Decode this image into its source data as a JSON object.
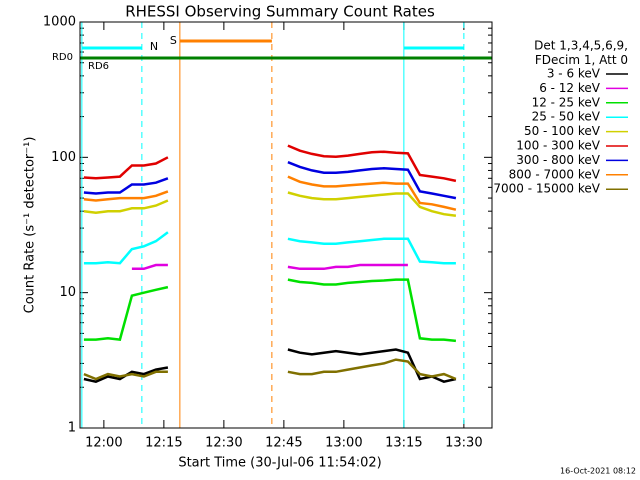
{
  "chart_data": {
    "type": "line",
    "title": "RHESSI Observing Summary Count Rates",
    "xlabel": "Start Time (30-Jul-06 11:54:02)",
    "ylabel": "Count Rate (s⁻¹ detector⁻¹)",
    "log_y": true,
    "xlim": [
      "11:54:02",
      "13:37:02"
    ],
    "xticks": [
      "12:00",
      "12:15",
      "12:30",
      "12:45",
      "13:00",
      "13:15",
      "13:30"
    ],
    "ylim": [
      1,
      1000
    ],
    "yticks": [
      1,
      10,
      100,
      1000
    ],
    "legend_title": [
      "Det 1,3,4,5,6,9,",
      "FDecim 1, Att 0"
    ],
    "legend_position": "right",
    "footer": "16-Oct-2021 08:12",
    "annotations": [
      {
        "text": "N",
        "color": "#00ffff",
        "spans": [
          [
            "11:54:30",
            "12:09:30"
          ],
          [
            "13:15",
            "13:30"
          ]
        ]
      },
      {
        "text": "S",
        "color": "#ff8000",
        "spans": [
          [
            "12:19",
            "12:42"
          ]
        ]
      },
      {
        "text": "RD0",
        "color": "#008000",
        "spans": [
          [
            "11:54:02",
            "13:37:02"
          ]
        ]
      },
      {
        "text": "RD6",
        "color": "#008000",
        "spans": []
      }
    ],
    "x": [
      "11:55",
      "11:58",
      "12:01",
      "12:04",
      "12:07",
      "12:10",
      "12:13",
      "12:16",
      "12:19",
      "12:22",
      "12:25",
      "12:28",
      "12:31",
      "12:34",
      "12:37",
      "12:40",
      "12:43",
      "12:46",
      "12:49",
      "12:52",
      "12:55",
      "12:58",
      "13:01",
      "13:04",
      "13:07",
      "13:10",
      "13:13",
      "13:16",
      "13:19",
      "13:22",
      "13:25",
      "13:28"
    ],
    "series": [
      {
        "name": "3 - 6 keV",
        "color": "#000000",
        "values": [
          2.3,
          2.2,
          2.4,
          2.3,
          2.6,
          2.5,
          2.7,
          2.8,
          null,
          null,
          null,
          null,
          null,
          null,
          null,
          null,
          null,
          3.8,
          3.6,
          3.5,
          3.6,
          3.7,
          3.6,
          3.5,
          3.6,
          3.7,
          3.8,
          3.6,
          2.3,
          2.4,
          2.2,
          2.3
        ]
      },
      {
        "name": "6 - 12 keV",
        "color": "#e000e0",
        "values": [
          null,
          null,
          null,
          null,
          15,
          15,
          16,
          16,
          null,
          null,
          null,
          null,
          null,
          null,
          null,
          null,
          null,
          15.5,
          15,
          15,
          15,
          15.5,
          15.5,
          16,
          16,
          16,
          16,
          16,
          null,
          null,
          null,
          null
        ]
      },
      {
        "name": "12 - 25 keV",
        "color": "#00e000",
        "values": [
          4.5,
          4.5,
          4.6,
          4.5,
          9.5,
          10,
          10.5,
          11,
          null,
          null,
          null,
          null,
          null,
          null,
          null,
          null,
          null,
          12.5,
          12,
          11.8,
          11.5,
          11.5,
          11.8,
          12,
          12.2,
          12.3,
          12.5,
          12.5,
          4.6,
          4.5,
          4.5,
          4.4
        ]
      },
      {
        "name": "25 - 50 keV",
        "color": "#00ffff",
        "values": [
          16.5,
          16.5,
          16.8,
          16.5,
          21,
          22,
          24,
          28,
          null,
          null,
          null,
          null,
          null,
          null,
          null,
          null,
          null,
          25,
          24,
          23.5,
          23,
          23,
          23.5,
          24,
          24.5,
          25,
          25,
          25,
          17,
          16.8,
          16.5,
          16.5
        ]
      },
      {
        "name": "50 - 100 keV",
        "color": "#d0d000",
        "values": [
          40,
          39,
          40,
          40,
          42,
          42,
          44,
          48,
          null,
          null,
          null,
          null,
          null,
          null,
          null,
          null,
          null,
          55,
          52,
          50,
          49,
          49,
          50,
          51,
          52,
          53,
          54,
          54,
          43,
          40,
          38,
          37
        ]
      },
      {
        "name": "100 - 300 keV",
        "color": "#e00000",
        "values": [
          71,
          70,
          71,
          72,
          87,
          87,
          90,
          100,
          null,
          null,
          null,
          null,
          null,
          null,
          null,
          null,
          null,
          122,
          112,
          106,
          102,
          101,
          103,
          106,
          109,
          110,
          108,
          107,
          74,
          72,
          70,
          67
        ]
      },
      {
        "name": "300 - 800 keV",
        "color": "#0000e0",
        "values": [
          55,
          54,
          55,
          55,
          63,
          63,
          65,
          70,
          null,
          null,
          null,
          null,
          null,
          null,
          null,
          null,
          null,
          92,
          85,
          80,
          77,
          77,
          78,
          80,
          82,
          83,
          82,
          81,
          56,
          54,
          52,
          50
        ]
      },
      {
        "name": "800 - 7000 keV",
        "color": "#ff8000",
        "values": [
          49,
          48,
          49,
          50,
          50,
          50,
          52,
          56,
          null,
          null,
          null,
          null,
          null,
          null,
          null,
          null,
          null,
          72,
          66,
          63,
          61,
          61,
          62,
          63,
          64,
          65,
          64,
          64,
          46,
          45,
          43,
          41
        ]
      },
      {
        "name": "7000 - 15000 keV",
        "color": "#807000",
        "values": [
          2.5,
          2.3,
          2.5,
          2.4,
          2.5,
          2.4,
          2.6,
          2.6,
          null,
          null,
          null,
          null,
          null,
          null,
          null,
          null,
          null,
          2.6,
          2.5,
          2.5,
          2.6,
          2.6,
          2.7,
          2.8,
          2.9,
          3.0,
          3.2,
          3.1,
          2.5,
          2.4,
          2.5,
          2.3
        ]
      }
    ]
  }
}
